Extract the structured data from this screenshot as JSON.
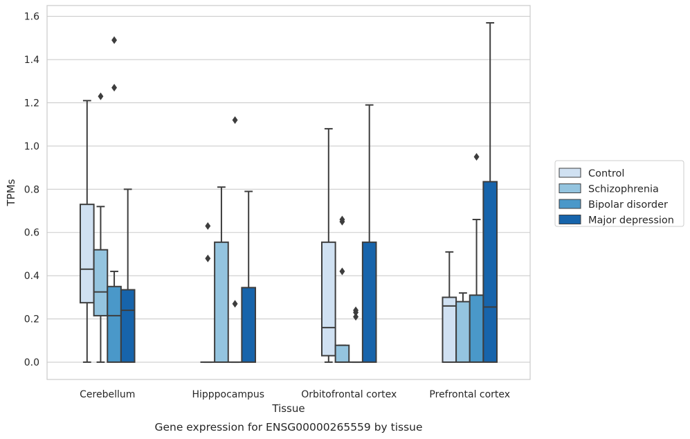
{
  "chart_data": {
    "type": "box",
    "title": "",
    "caption": "Gene expression for ENSG00000265559 by tissue",
    "xlabel": "Tissue",
    "ylabel": "TPMs",
    "ylim": [
      -0.08,
      1.65
    ],
    "yticks": [
      "0.0",
      "0.2",
      "0.4",
      "0.6",
      "0.8",
      "1.0",
      "1.2",
      "1.4",
      "1.6"
    ],
    "grid": "horizontal",
    "legend_position": "right",
    "categories": [
      "Cerebellum",
      "Hipppocampus",
      "Orbitofrontal cortex",
      "Prefrontal cortex"
    ],
    "series": [
      {
        "name": "Control",
        "color": "#d0e1f2",
        "boxes": [
          {
            "whislo": 0.0,
            "q1": 0.275,
            "med": 0.43,
            "q3": 0.73,
            "whishi": 1.21,
            "fliers": []
          },
          {
            "whislo": 0.0,
            "q1": 0.0,
            "med": 0.0,
            "q3": 0.0,
            "whishi": 0.0,
            "fliers": [
              0.48,
              0.63
            ]
          },
          {
            "whislo": 0.0,
            "q1": 0.03,
            "med": 0.16,
            "q3": 0.555,
            "whishi": 1.08,
            "fliers": []
          },
          {
            "whislo": 0.0,
            "q1": 0.0,
            "med": 0.26,
            "q3": 0.3,
            "whishi": 0.51,
            "fliers": []
          }
        ]
      },
      {
        "name": "Schizophrenia",
        "color": "#94c4df",
        "boxes": [
          {
            "whislo": 0.0,
            "q1": 0.215,
            "med": 0.325,
            "q3": 0.52,
            "whishi": 0.72,
            "fliers": [
              1.23
            ]
          },
          {
            "whislo": 0.0,
            "q1": 0.0,
            "med": 0.0,
            "q3": 0.555,
            "whishi": 0.81,
            "fliers": []
          },
          {
            "whislo": 0.0,
            "q1": 0.0,
            "med": 0.0,
            "q3": 0.078,
            "whishi": 0.078,
            "fliers": [
              0.42,
              0.65,
              0.66
            ]
          },
          {
            "whislo": 0.0,
            "q1": 0.0,
            "med": 0.0,
            "q3": 0.28,
            "whishi": 0.32,
            "fliers": []
          }
        ]
      },
      {
        "name": "Bipolar disorder",
        "color": "#4a98c9",
        "boxes": [
          {
            "whislo": 0.0,
            "q1": 0.0,
            "med": 0.215,
            "q3": 0.35,
            "whishi": 0.42,
            "fliers": [
              1.27,
              1.49
            ]
          },
          {
            "whislo": 0.0,
            "q1": 0.0,
            "med": 0.0,
            "q3": 0.0,
            "whishi": 0.0,
            "fliers": [
              0.27,
              1.12
            ]
          },
          {
            "whislo": 0.0,
            "q1": 0.0,
            "med": 0.0,
            "q3": 0.0,
            "whishi": 0.0,
            "fliers": [
              0.21,
              0.23,
              0.24
            ]
          },
          {
            "whislo": 0.0,
            "q1": 0.0,
            "med": 0.0,
            "q3": 0.31,
            "whishi": 0.66,
            "fliers": [
              0.95
            ]
          }
        ]
      },
      {
        "name": "Major depression",
        "color": "#1764ab",
        "boxes": [
          {
            "whislo": 0.0,
            "q1": 0.0,
            "med": 0.24,
            "q3": 0.335,
            "whishi": 0.8,
            "fliers": []
          },
          {
            "whislo": 0.0,
            "q1": 0.0,
            "med": 0.0,
            "q3": 0.345,
            "whishi": 0.79,
            "fliers": []
          },
          {
            "whislo": 0.0,
            "q1": 0.0,
            "med": 0.0,
            "q3": 0.555,
            "whishi": 1.19,
            "fliers": []
          },
          {
            "whislo": 0.0,
            "q1": 0.0,
            "med": 0.255,
            "q3": 0.835,
            "whishi": 1.57,
            "fliers": []
          }
        ]
      }
    ],
    "colors": {
      "grid": "#cccccc",
      "frame": "#cccccc",
      "box_edge": "#3d3d3d"
    }
  }
}
